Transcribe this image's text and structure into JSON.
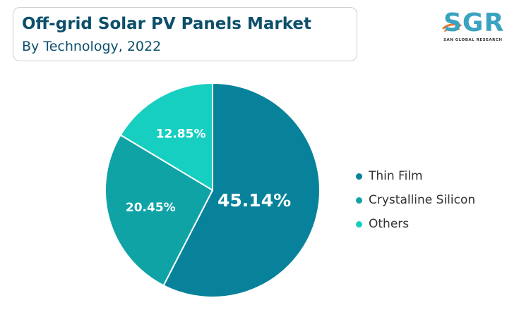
{
  "header": {
    "title": "Off-grid Solar PV Panels Market",
    "subtitle": "By Technology, 2022"
  },
  "logo": {
    "text": "SGR",
    "subtext": "SAN GLOBAL RESEARCH"
  },
  "chart_data": {
    "type": "pie",
    "start_angle_deg": 0,
    "direction": "clockwise",
    "categories": [
      "Thin Film",
      "Crystalline Silicon",
      "Others"
    ],
    "values": [
      45.14,
      20.45,
      12.85
    ],
    "data_labels": [
      "45.14%",
      "20.45%",
      "12.85%"
    ],
    "colors": [
      "#07829a",
      "#0fa3a6",
      "#17cfc0"
    ],
    "legend_position": "right"
  }
}
